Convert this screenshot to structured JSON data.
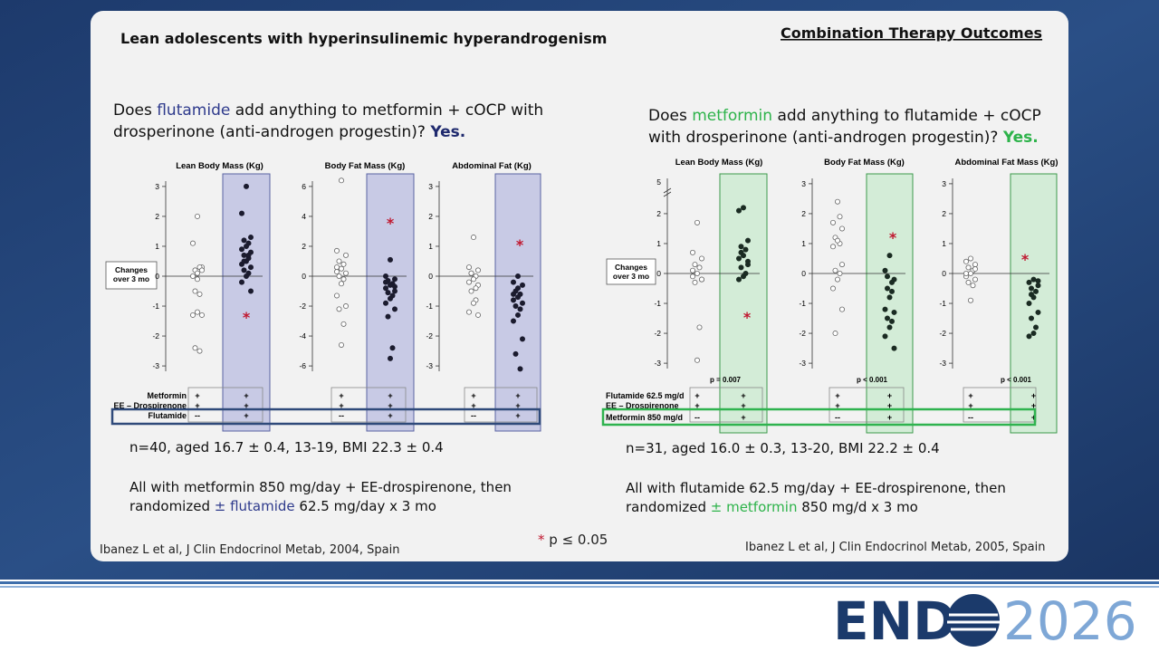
{
  "header": {
    "title": "Lean adolescents with hyperinsulinemic hyperandrogenism",
    "section": "Combination Therapy Outcomes"
  },
  "studies": [
    {
      "question": [
        [
          {
            "text": "Does "
          },
          {
            "text": "flutamide",
            "color": "#2e3a8c"
          },
          {
            "text": " add anything to metformin + cOCP with"
          }
        ],
        [
          {
            "text": "drosperinone (anti-androgen progestin)? "
          },
          {
            "text": "Yes.",
            "color": "#1f2a6e",
            "bold": true
          }
        ]
      ],
      "band_color": "#c8cae5",
      "band_border": "#5a64a3",
      "highlight_color": "#2f4a7a",
      "changes_label": [
        "Changes",
        "over 3 mo"
      ],
      "charts": [
        {
          "type": "dot",
          "title": "Lean Body Mass (Kg)",
          "ylim": [
            -3.3,
            3.3
          ],
          "yticks": [
            -3,
            -2,
            -1,
            0,
            1,
            2,
            3
          ],
          "marker": "*",
          "series": [
            {
              "style": "open",
              "color": "#666666",
              "values": [
                2,
                1.1,
                0.3,
                0.2,
                0.3,
                0.1,
                0,
                0.2,
                -0.5,
                -0.6,
                -1.2,
                -1.3,
                -1.3,
                -2.4,
                -2.5,
                -0.1
              ]
            },
            {
              "style": "filled",
              "color": "#1b1b2e",
              "values": [
                3,
                2.1,
                1.3,
                1.2,
                1.1,
                1,
                0.9,
                0.8,
                0.7,
                0.6,
                0.5,
                0.4,
                0.3,
                0.2,
                0.1,
                0,
                -0.2,
                -0.5,
                0.5,
                0.7
              ]
            }
          ]
        },
        {
          "type": "dot",
          "title": "Body Fat Mass (Kg)",
          "ylim": [
            -6.6,
            6.6
          ],
          "yticks": [
            -6,
            -4,
            -2,
            0,
            2,
            4,
            6
          ],
          "marker": "*",
          "series": [
            {
              "style": "open",
              "color": "#666666",
              "values": [
                6.4,
                1.7,
                1.4,
                1,
                0.8,
                0.5,
                0.3,
                0.2,
                0,
                -0.2,
                -0.5,
                -1.3,
                -2,
                -2.2,
                -3.2,
                -4.6,
                0.6
              ]
            },
            {
              "style": "filled",
              "color": "#1b1b2e",
              "values": [
                1.1,
                0,
                -0.2,
                -0.3,
                -0.5,
                -0.6,
                -0.8,
                -1,
                -1.1,
                -1.3,
                -1.5,
                -1.8,
                -2.2,
                -2.7,
                -4.8,
                -5.5,
                -0.4,
                -0.7
              ]
            }
          ]
        },
        {
          "type": "dot",
          "title": "Abdominal Fat (Kg)",
          "ylim": [
            -3.3,
            3.3
          ],
          "yticks": [
            -3,
            -2,
            -1,
            0,
            1,
            2,
            3
          ],
          "marker": "*",
          "series": [
            {
              "style": "open",
              "color": "#666666",
              "values": [
                1.3,
                0.3,
                0.2,
                0.1,
                0,
                -0.1,
                -0.2,
                -0.3,
                -0.5,
                -0.8,
                -0.9,
                -1.2,
                -1.3,
                0.1,
                -0.4
              ]
            },
            {
              "style": "filled",
              "color": "#1b1b2e",
              "values": [
                0,
                -0.2,
                -0.3,
                -0.5,
                -0.6,
                -0.7,
                -0.8,
                -0.9,
                -1,
                -1.1,
                -1.3,
                -1.5,
                -2.1,
                -2.6,
                -3.1,
                -0.4,
                -0.6
              ]
            }
          ]
        }
      ],
      "table": [
        {
          "label": "Metformin",
          "cells": [
            "+",
            "+"
          ]
        },
        {
          "label": "EE – Drospirenone",
          "cells": [
            "+",
            "+"
          ]
        },
        {
          "label": "Flutamide",
          "cells": [
            "--",
            "+"
          ]
        }
      ],
      "summary": [
        [
          {
            "text": "n=40, aged 16.7 ± 0.4, 13-19, BMI 22.3 ± 0.4"
          }
        ],
        [
          {
            "text": "All with metformin 850 mg/day + EE-drospirenone, then"
          }
        ],
        [
          {
            "text": "randomized "
          },
          {
            "text": "± flutamide",
            "color": "#2e3a8c"
          },
          {
            "text": " 62.5 mg/day x 3 mo"
          }
        ]
      ],
      "citation": "Ibanez L et al, J Clin Endocrinol Metab, 2004, Spain"
    },
    {
      "question": [
        [
          {
            "text": "Does "
          },
          {
            "text": "metformin",
            "color": "#2db34a"
          },
          {
            "text": " add anything to flutamide + cOCP"
          }
        ],
        [
          {
            "text": "with drosperinone (anti-androgen progestin)? "
          },
          {
            "text": "Yes.",
            "color": "#2db34a",
            "bold": true
          }
        ]
      ],
      "band_color": "#d3ecd7",
      "band_border": "#3d9a4c",
      "highlight_color": "#2fb34f",
      "changes_label": [
        "Changes",
        "over 3 mo"
      ],
      "charts": [
        {
          "type": "dot",
          "title": "Lean Body Mass (Kg)",
          "ylim": [
            -3.3,
            3.3
          ],
          "yticks": [
            -3,
            -2,
            -1,
            0,
            1,
            2
          ],
          "break_tick": 5,
          "marker": "*",
          "p": "p = 0.007",
          "series": [
            {
              "style": "open",
              "color": "#666666",
              "values": [
                1.7,
                0.7,
                0.5,
                0.3,
                0.2,
                0,
                -0.1,
                -0.2,
                -0.3,
                -1.8,
                -2.9,
                0.1,
                -0.2
              ]
            },
            {
              "style": "filled",
              "color": "#1a2b22",
              "values": [
                2.2,
                2.1,
                1.1,
                0.9,
                0.8,
                0.6,
                0.5,
                0.3,
                0.2,
                0,
                -0.1,
                -0.2,
                0.4,
                0.7
              ]
            }
          ]
        },
        {
          "type": "dot",
          "title": "Body Fat Mass (Kg)",
          "ylim": [
            -3.3,
            3.3
          ],
          "yticks": [
            -3,
            -2,
            -1,
            0,
            1,
            2,
            3
          ],
          "marker": "*",
          "p": "p < 0.001",
          "series": [
            {
              "style": "open",
              "color": "#666666",
              "values": [
                2.4,
                1.7,
                1.5,
                1.2,
                1,
                1.1,
                0.9,
                0.3,
                0.1,
                0,
                -0.2,
                -0.5,
                -1.2,
                -2,
                1.9
              ]
            },
            {
              "style": "filled",
              "color": "#1a2b22",
              "values": [
                0.6,
                0.1,
                -0.2,
                -0.5,
                -0.6,
                -0.8,
                -1.2,
                -1.3,
                -1.5,
                -1.6,
                -1.8,
                -2.1,
                -2.5,
                -0.1,
                -0.3
              ]
            }
          ]
        },
        {
          "type": "dot",
          "title": "Abdominal Fat Mass (Kg)",
          "ylim": [
            -3.3,
            3.3
          ],
          "yticks": [
            -3,
            -2,
            -1,
            0,
            1,
            2,
            3
          ],
          "marker": "*",
          "p": "p < 0.001",
          "series": [
            {
              "style": "open",
              "color": "#666666",
              "values": [
                0.5,
                0.4,
                0.3,
                0.2,
                0.1,
                0,
                -0.1,
                -0.2,
                -0.3,
                -0.4,
                -0.9,
                0,
                0.15
              ]
            },
            {
              "style": "filled",
              "color": "#1a2b22",
              "values": [
                -0.2,
                -0.3,
                -0.4,
                -0.5,
                -0.6,
                -0.8,
                -1,
                -1.3,
                -1.5,
                -1.8,
                -2,
                -2.1,
                -0.25,
                -0.7
              ]
            }
          ]
        }
      ],
      "table": [
        {
          "label": "Flutamide  62.5 mg/d",
          "cells": [
            "+",
            "+"
          ]
        },
        {
          "label": "EE – Drospirenone",
          "cells": [
            "+",
            "+"
          ]
        },
        {
          "label": "Metformin 850 mg/d",
          "cells": [
            "--",
            "+"
          ]
        }
      ],
      "summary": [
        [
          {
            "text": "n=31, aged 16.0 ± 0.3, 13-20, BMI 22.2 ± 0.4"
          }
        ],
        [
          {
            "text": "All with flutamide 62.5 mg/day + EE-drospirenone, then"
          }
        ],
        [
          {
            "text": "randomized "
          },
          {
            "text": "± metformin",
            "color": "#2db34a"
          },
          {
            "text": " 850 mg/d x 3 mo"
          }
        ]
      ],
      "citation": "Ibanez L et al, J Clin Endocrinol Metab, 2005, Spain"
    }
  ],
  "footnote": {
    "star": "*",
    "text": "p ≤ 0.05"
  },
  "logo": {
    "left": "END",
    "right": "2026"
  }
}
